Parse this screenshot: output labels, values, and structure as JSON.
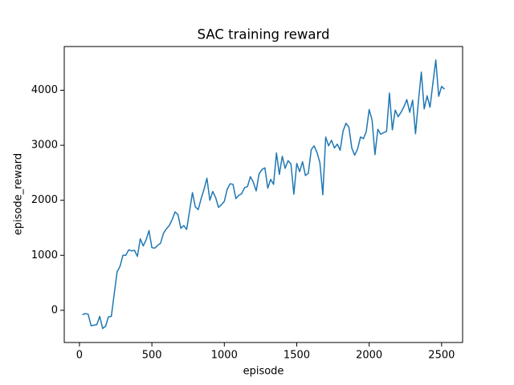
{
  "chart_data": {
    "type": "line",
    "title": "SAC training reward",
    "x_label": "episode",
    "y_label": "episode_reward",
    "x": [
      20,
      40,
      60,
      80,
      100,
      120,
      140,
      160,
      180,
      200,
      220,
      240,
      260,
      280,
      300,
      320,
      340,
      360,
      380,
      400,
      420,
      440,
      460,
      480,
      500,
      520,
      540,
      560,
      580,
      600,
      620,
      640,
      660,
      680,
      700,
      720,
      740,
      760,
      780,
      800,
      820,
      840,
      860,
      880,
      900,
      920,
      940,
      960,
      980,
      1000,
      1020,
      1040,
      1060,
      1080,
      1100,
      1120,
      1140,
      1160,
      1180,
      1200,
      1220,
      1240,
      1260,
      1280,
      1300,
      1320,
      1340,
      1360,
      1380,
      1400,
      1420,
      1440,
      1460,
      1480,
      1500,
      1520,
      1540,
      1560,
      1580,
      1600,
      1620,
      1640,
      1660,
      1680,
      1700,
      1720,
      1740,
      1760,
      1780,
      1800,
      1820,
      1840,
      1860,
      1880,
      1900,
      1920,
      1940,
      1960,
      1980,
      2000,
      2020,
      2040,
      2060,
      2080,
      2100,
      2120,
      2140,
      2160,
      2180,
      2200,
      2220,
      2240,
      2260,
      2280,
      2300,
      2320,
      2340,
      2360,
      2380,
      2400,
      2420,
      2440,
      2460,
      2480,
      2500,
      2520
    ],
    "series": [
      {
        "name": "episode_reward",
        "color": "#1f77b4",
        "values": [
          -80,
          -60,
          -70,
          -280,
          -270,
          -260,
          -110,
          -330,
          -290,
          -120,
          -110,
          300,
          700,
          800,
          1000,
          1000,
          1100,
          1080,
          1090,
          980,
          1300,
          1170,
          1280,
          1450,
          1140,
          1130,
          1180,
          1220,
          1400,
          1480,
          1540,
          1650,
          1790,
          1740,
          1490,
          1540,
          1470,
          1800,
          2140,
          1880,
          1830,
          2030,
          2200,
          2400,
          2000,
          2160,
          2050,
          1870,
          1920,
          1980,
          2200,
          2300,
          2290,
          2030,
          2090,
          2120,
          2230,
          2250,
          2430,
          2330,
          2170,
          2480,
          2560,
          2590,
          2220,
          2380,
          2290,
          2860,
          2470,
          2800,
          2580,
          2720,
          2660,
          2110,
          2670,
          2520,
          2700,
          2450,
          2490,
          2920,
          2990,
          2870,
          2680,
          2100,
          3150,
          2990,
          3090,
          2950,
          3020,
          2910,
          3260,
          3400,
          3330,
          2950,
          2820,
          2930,
          3150,
          3120,
          3250,
          3650,
          3460,
          2830,
          3290,
          3200,
          3230,
          3250,
          3950,
          3280,
          3640,
          3520,
          3600,
          3700,
          3830,
          3600,
          3820,
          3210,
          3800,
          4330,
          3660,
          3900,
          3690,
          4130,
          4550,
          3890,
          4070,
          4020
        ]
      }
    ],
    "xlim": [
      -105,
      2645
    ],
    "ylim": [
      -585,
      4795
    ],
    "xticks": [
      0,
      500,
      1000,
      1500,
      2000,
      2500
    ],
    "yticks": [
      0,
      1000,
      2000,
      3000,
      4000
    ]
  }
}
